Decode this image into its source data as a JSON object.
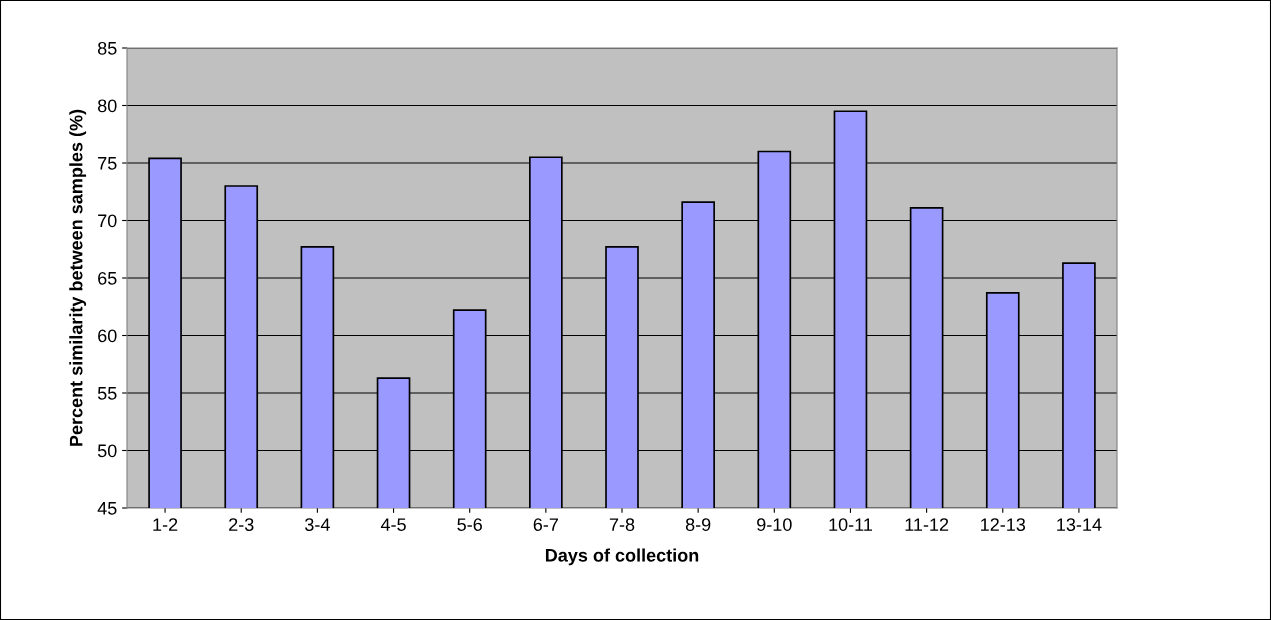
{
  "chart_data": {
    "type": "bar",
    "xlabel": "Days of collection",
    "ylabel": "Percent similarity between samples (%)",
    "categories": [
      "1-2",
      "2-3",
      "3-4",
      "4-5",
      "5-6",
      "6-7",
      "7-8",
      "8-9",
      "9-10",
      "10-11",
      "11-12",
      "12-13",
      "13-14"
    ],
    "values": [
      75.4,
      73.0,
      67.7,
      56.3,
      62.2,
      75.5,
      67.7,
      71.6,
      76.0,
      79.5,
      71.1,
      63.7,
      66.3
    ],
    "color": "#9999ff",
    "ylim": [
      45,
      85
    ],
    "yticks": [
      45,
      50,
      55,
      60,
      65,
      70,
      75,
      80,
      85
    ],
    "grid": "y"
  }
}
